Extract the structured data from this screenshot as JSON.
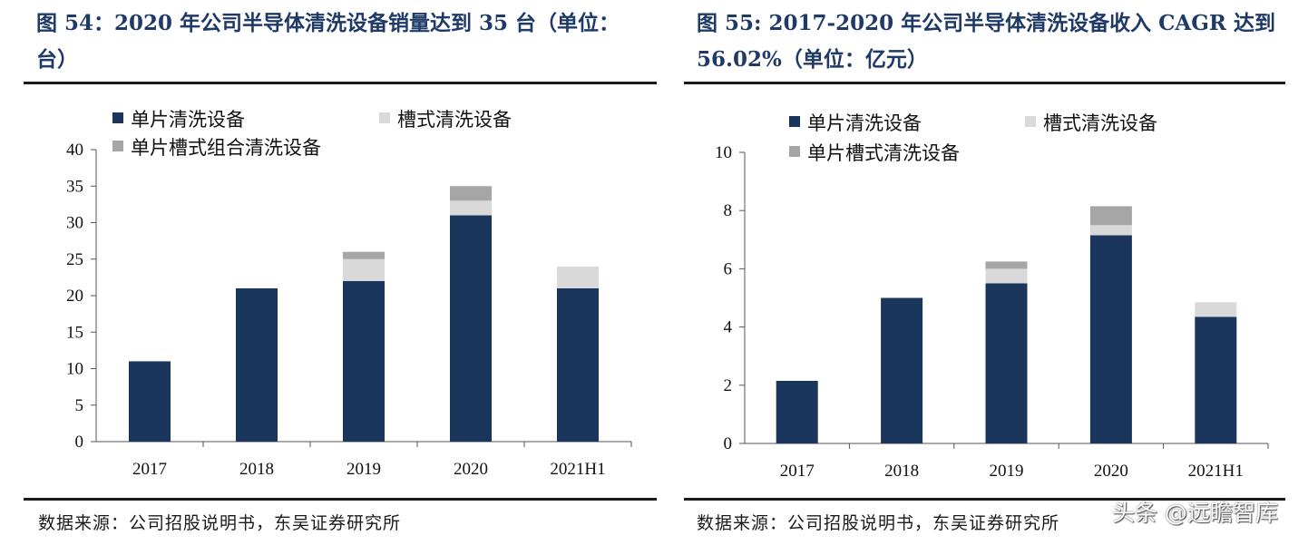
{
  "figures": [
    {
      "title": "图 54：2020 年公司半导体清洗设备销量达到 35 台（单位：台）",
      "source": "数据来源：公司招股说明书，东吴证券研究所"
    },
    {
      "title": "图 55: 2017-2020 年公司半导体清洗设备收入 CAGR 达到 56.02%（单位：亿元）",
      "source": "数据来源：公司招股说明书，东吴证券研究所"
    }
  ],
  "watermark": "头条 @远瞻智库",
  "colors": {
    "single": "#1b365d",
    "trough": "#d9d9d9",
    "combo": "#a6a6a6"
  },
  "chart_data": [
    {
      "type": "bar",
      "stacked": true,
      "categories": [
        "2017",
        "2018",
        "2019",
        "2020",
        "2021H1"
      ],
      "series": [
        {
          "name": "单片清洗设备",
          "values": [
            11,
            21,
            22,
            31,
            21
          ]
        },
        {
          "name": "槽式清洗设备",
          "values": [
            0,
            0,
            3,
            2,
            3
          ]
        },
        {
          "name": "单片槽式组合清洗设备",
          "values": [
            0,
            0,
            1,
            2,
            0
          ]
        }
      ],
      "ylim": [
        0,
        40
      ],
      "yticks": [
        0,
        5,
        10,
        15,
        20,
        25,
        30,
        35,
        40
      ],
      "legend_position": "top-left",
      "grid": false
    },
    {
      "type": "bar",
      "stacked": true,
      "categories": [
        "2017",
        "2018",
        "2019",
        "2020",
        "2021H1"
      ],
      "series": [
        {
          "name": "单片清洗设备",
          "values": [
            2.15,
            5.0,
            5.5,
            7.15,
            4.35
          ]
        },
        {
          "name": "槽式清洗设备",
          "values": [
            0,
            0,
            0.5,
            0.35,
            0.5
          ]
        },
        {
          "name": "单片槽式清洗设备",
          "values": [
            0,
            0,
            0.25,
            0.65,
            0
          ]
        }
      ],
      "ylim": [
        0,
        10
      ],
      "yticks": [
        0,
        2,
        4,
        6,
        8,
        10
      ],
      "legend_position": "top-left",
      "grid": false
    }
  ]
}
